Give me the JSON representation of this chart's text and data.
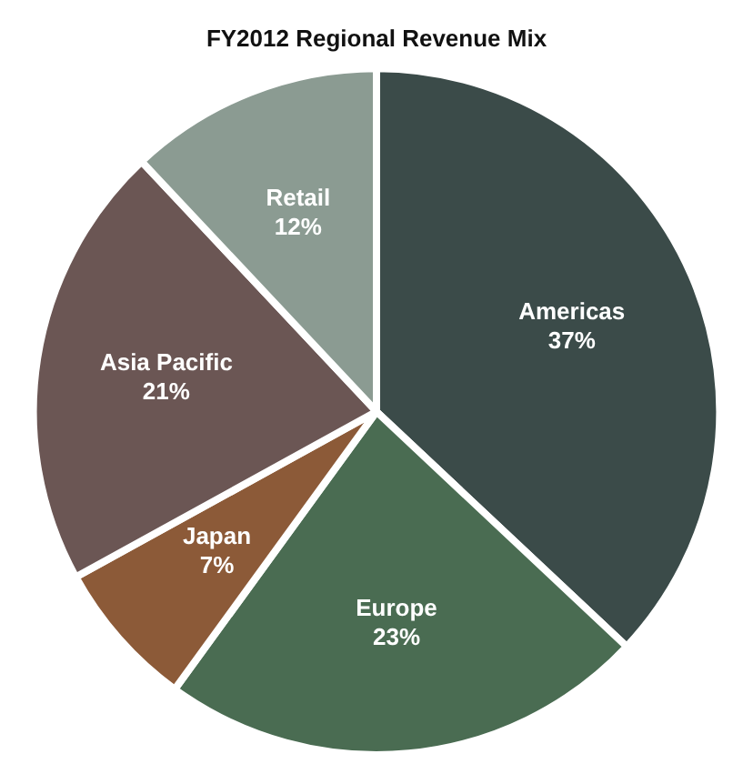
{
  "chart_data": {
    "type": "pie",
    "title": "FY2012 Regional Revenue Mix",
    "categories": [
      "Americas",
      "Europe",
      "Japan",
      "Asia Pacific",
      "Retail"
    ],
    "values": [
      37,
      23,
      7,
      21,
      12
    ],
    "value_labels": [
      "37%",
      "23%",
      "7%",
      "21%",
      "12%"
    ],
    "colors": [
      "#3b4b49",
      "#4a6c52",
      "#8c5a38",
      "#6b5654",
      "#8b9b92"
    ],
    "legend": false
  }
}
